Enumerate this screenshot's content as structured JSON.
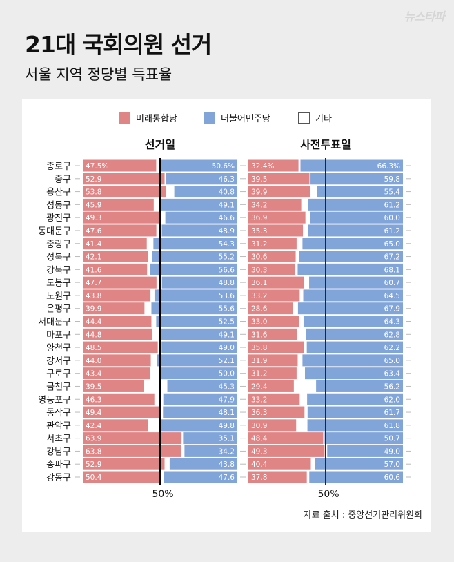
{
  "logo": "뉴스타파",
  "header": {
    "title": "21대 국회의원 선거",
    "subtitle": "서울 지역 정당별 득표율"
  },
  "legend": [
    {
      "label": "미래통합당",
      "color": "#df8585"
    },
    {
      "label": "더불어민주당",
      "color": "#82a5d9"
    },
    {
      "label": "기타",
      "color": "#ffffff"
    }
  ],
  "source": "자료 출처 : 중앙선거관리위원회",
  "chart_data": [
    {
      "type": "bar",
      "stacked": "diverging-100%",
      "title": "선거일",
      "midline_label": "50%",
      "categories": [
        "종로구",
        "중구",
        "용산구",
        "성동구",
        "광진구",
        "동대문구",
        "중랑구",
        "성북구",
        "강북구",
        "도봉구",
        "노원구",
        "은평구",
        "서대문구",
        "마포구",
        "양천구",
        "강서구",
        "구로구",
        "금천구",
        "영등포구",
        "동작구",
        "관악구",
        "서초구",
        "강남구",
        "송파구",
        "강동구"
      ],
      "series": [
        {
          "name": "미래통합당",
          "values": [
            47.5,
            52.9,
            53.8,
            45.9,
            49.3,
            47.6,
            41.4,
            42.1,
            41.6,
            47.7,
            43.8,
            39.9,
            44.4,
            44.8,
            48.5,
            44.0,
            43.4,
            39.5,
            46.3,
            49.4,
            42.4,
            63.9,
            63.8,
            52.9,
            50.4
          ]
        },
        {
          "name": "더불어민주당",
          "values": [
            50.6,
            46.3,
            40.8,
            49.1,
            46.6,
            48.9,
            54.3,
            55.2,
            56.6,
            48.8,
            53.6,
            55.6,
            52.5,
            49.1,
            49.0,
            52.1,
            50.0,
            45.3,
            47.9,
            48.1,
            49.8,
            35.1,
            34.2,
            43.8,
            47.6
          ]
        }
      ]
    },
    {
      "type": "bar",
      "stacked": "diverging-100%",
      "title": "사전투표일",
      "midline_label": "50%",
      "categories": [
        "종로구",
        "중구",
        "용산구",
        "성동구",
        "광진구",
        "동대문구",
        "중랑구",
        "성북구",
        "강북구",
        "도봉구",
        "노원구",
        "은평구",
        "서대문구",
        "마포구",
        "양천구",
        "강서구",
        "구로구",
        "금천구",
        "영등포구",
        "동작구",
        "관악구",
        "서초구",
        "강남구",
        "송파구",
        "강동구"
      ],
      "series": [
        {
          "name": "미래통합당",
          "values": [
            32.4,
            39.5,
            39.9,
            34.2,
            36.9,
            35.3,
            31.2,
            30.6,
            30.3,
            36.1,
            33.2,
            28.6,
            33.0,
            31.6,
            35.8,
            31.9,
            31.2,
            29.4,
            33.2,
            36.3,
            30.9,
            48.4,
            49.3,
            40.4,
            37.8
          ]
        },
        {
          "name": "더불어민주당",
          "values": [
            66.3,
            59.8,
            55.4,
            61.2,
            60.0,
            61.2,
            65.0,
            67.2,
            68.1,
            60.7,
            64.5,
            67.9,
            64.3,
            62.8,
            62.2,
            65.0,
            63.4,
            56.2,
            62.0,
            61.7,
            61.8,
            50.7,
            49.0,
            57.0,
            60.6
          ]
        }
      ]
    }
  ]
}
